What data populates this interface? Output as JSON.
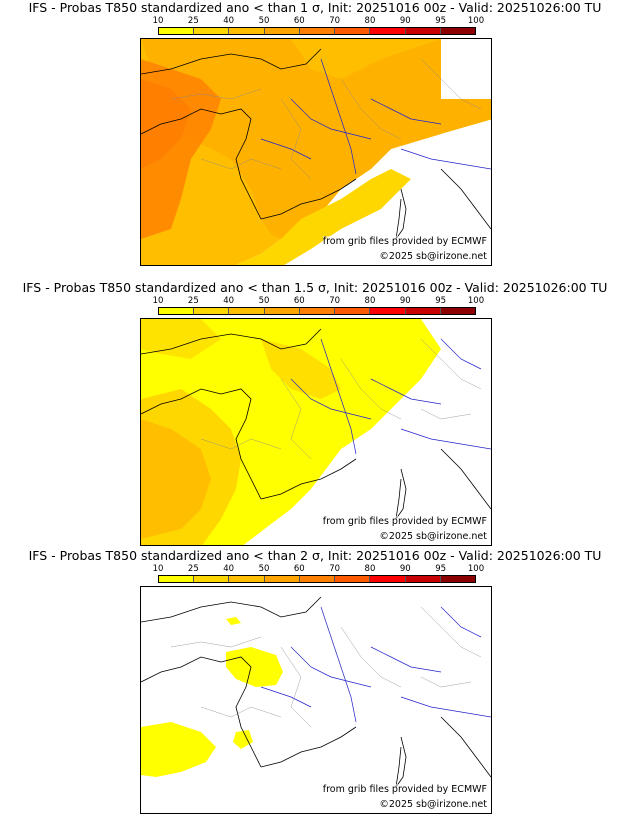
{
  "colorbar": {
    "ticks": [
      "10",
      "25",
      "40",
      "50",
      "60",
      "70",
      "80",
      "90",
      "95",
      "100"
    ],
    "colors": [
      "#ffff00",
      "#ffd700",
      "#ffbf00",
      "#ffa500",
      "#ff8000",
      "#ff5a00",
      "#ff0000",
      "#c80000",
      "#8b0000"
    ]
  },
  "panels": [
    {
      "title": "IFS - Probas T850  standardized ano < than 1 σ, Init: 20251016 00z - Valid: 20251026:00 TU",
      "source_credit": "from grib files provided by ECMWF",
      "copyright": "©2025 sb@irizone.net"
    },
    {
      "title": "IFS - Probas T850  standardized ano < than 1.5 σ, Init: 20251016 00z - Valid: 20251026:00 TU",
      "source_credit": "from grib files provided by ECMWF",
      "copyright": "©2025 sb@irizone.net"
    },
    {
      "title": "IFS - Probas T850  standardized ano < than 2 σ, Init: 20251016 00z - Valid: 20251026:00 TU",
      "source_credit": "from grib files provided by ECMWF",
      "copyright": "©2025 sb@irizone.net"
    }
  ]
}
